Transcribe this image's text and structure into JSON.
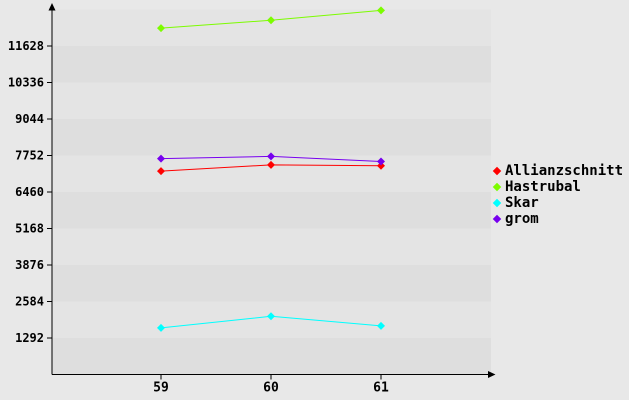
{
  "chart_data": {
    "type": "line",
    "title": "",
    "xlabel": "",
    "ylabel": "",
    "x": [
      59,
      60,
      61
    ],
    "x_tick_labels": [
      "59",
      "60",
      "61"
    ],
    "y_ticks": [
      1292,
      2584,
      3876,
      5168,
      6460,
      7752,
      9044,
      10336,
      11628
    ],
    "ylim": [
      0,
      12920
    ],
    "grid": "alternating-horizontal-bands",
    "legend_position": "right",
    "marker": "diamond",
    "series": [
      {
        "name": "Allianzschnitt",
        "color": "#ff0000",
        "values": [
          7200,
          7420,
          7390
        ]
      },
      {
        "name": "Hastrubal",
        "color": "#7cfc00",
        "values": [
          12260,
          12540,
          12890
        ]
      },
      {
        "name": "Skar",
        "color": "#00ffff",
        "values": [
          1650,
          2060,
          1720
        ]
      },
      {
        "name": "grom",
        "color": "#7700ee",
        "values": [
          7640,
          7720,
          7540
        ]
      }
    ]
  },
  "colors": {
    "background": "#e8e8e8",
    "band_light": "#e4e4e4",
    "band_dark": "#dedede",
    "axis": "#000000",
    "text": "#000000"
  }
}
